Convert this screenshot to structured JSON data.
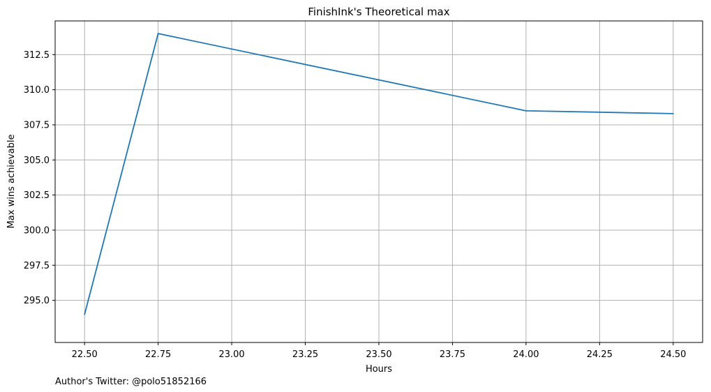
{
  "chart_data": {
    "type": "line",
    "title": "FinishInk's Theoretical max",
    "xlabel": "Hours",
    "ylabel": "Max wins achievable",
    "footer": "Author's Twitter: @polo51852166",
    "x": [
      22.5,
      22.75,
      24.0,
      24.5
    ],
    "series": [
      {
        "values": [
          294.0,
          314.0,
          308.5,
          308.3
        ]
      }
    ],
    "xlim": [
      22.4,
      24.6
    ],
    "ylim": [
      292.0,
      314.9
    ],
    "xticks": [
      "22.50",
      "22.75",
      "23.00",
      "23.25",
      "23.50",
      "23.75",
      "24.00",
      "24.25",
      "24.50"
    ],
    "xtick_values": [
      22.5,
      22.75,
      23.0,
      23.25,
      23.5,
      23.75,
      24.0,
      24.25,
      24.5
    ],
    "yticks": [
      "295.0",
      "297.5",
      "300.0",
      "302.5",
      "305.0",
      "307.5",
      "310.0",
      "312.5"
    ],
    "ytick_values": [
      295.0,
      297.5,
      300.0,
      302.5,
      305.0,
      307.5,
      310.0,
      312.5
    ],
    "grid": true,
    "colors": {
      "line": "#1f77b4",
      "grid": "#b0b0b0",
      "axis": "#000000"
    }
  }
}
